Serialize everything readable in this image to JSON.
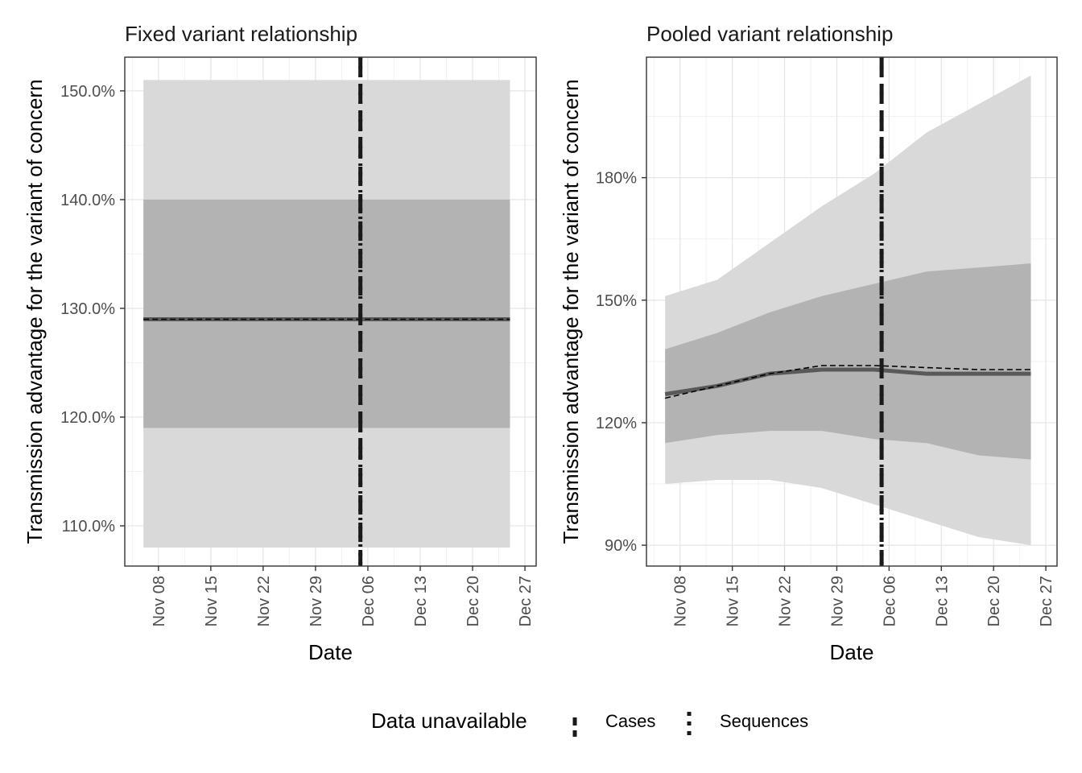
{
  "legend": {
    "title": "Data unavailable",
    "items": [
      {
        "label": "Cases",
        "dash": "long"
      },
      {
        "label": "Sequences",
        "dash": "short"
      }
    ]
  },
  "chart_data": [
    {
      "type": "line",
      "title": "Fixed variant relationship",
      "xlabel": "Date",
      "ylabel": "Transmission advantage for the variant of concern",
      "x_ticks": [
        "Nov 08",
        "Nov 15",
        "Nov 22",
        "Nov 29",
        "Dec 06",
        "Dec 13",
        "Dec 20",
        "Dec 27"
      ],
      "x_tick_days": [
        8,
        15,
        22,
        29,
        36,
        43,
        50,
        57
      ],
      "xlim_days": [
        3.5,
        58.5
      ],
      "y_ticks": [
        1.1,
        1.2,
        1.3,
        1.4,
        1.5
      ],
      "y_tick_labels": [
        "110.0%",
        "120.0%",
        "130.0%",
        "140.0%",
        "150.0%"
      ],
      "ylim": [
        1.063,
        1.531
      ],
      "x_days": [
        6,
        13,
        20,
        27,
        34,
        41,
        48,
        55
      ],
      "median": [
        1.29,
        1.29,
        1.29,
        1.29,
        1.29,
        1.29,
        1.29,
        1.29
      ],
      "ci50_lower": [
        1.19,
        1.19,
        1.19,
        1.19,
        1.19,
        1.19,
        1.19,
        1.19
      ],
      "ci50_upper": [
        1.4,
        1.4,
        1.4,
        1.4,
        1.4,
        1.4,
        1.4,
        1.4
      ],
      "ci90_lower": [
        1.08,
        1.08,
        1.08,
        1.08,
        1.08,
        1.08,
        1.08,
        1.08
      ],
      "ci90_upper": [
        1.51,
        1.51,
        1.51,
        1.51,
        1.51,
        1.51,
        1.51,
        1.51
      ],
      "reference": [
        1.29,
        1.29,
        1.29,
        1.29,
        1.29,
        1.29,
        1.29,
        1.29
      ],
      "cases_unavailable_day": 35,
      "sequences_unavailable_day": 35
    },
    {
      "type": "line",
      "title": "Pooled variant relationship",
      "xlabel": "Date",
      "ylabel": "Transmission advantage for the variant of concern",
      "x_ticks": [
        "Nov 08",
        "Nov 15",
        "Nov 22",
        "Nov 29",
        "Dec 06",
        "Dec 13",
        "Dec 20",
        "Dec 27"
      ],
      "x_tick_days": [
        8,
        15,
        22,
        29,
        36,
        43,
        50,
        57
      ],
      "xlim_days": [
        3.5,
        58.5
      ],
      "y_ticks": [
        0.9,
        1.2,
        1.5,
        1.8
      ],
      "y_tick_labels": [
        "90%",
        "120%",
        "150%",
        "180%"
      ],
      "ylim": [
        0.849,
        2.095
      ],
      "x_days": [
        6,
        13,
        20,
        27,
        34,
        41,
        48,
        55
      ],
      "median": [
        1.27,
        1.29,
        1.32,
        1.33,
        1.33,
        1.32,
        1.32,
        1.32
      ],
      "ci50_lower": [
        1.15,
        1.17,
        1.18,
        1.18,
        1.16,
        1.15,
        1.12,
        1.11
      ],
      "ci50_upper": [
        1.38,
        1.42,
        1.47,
        1.51,
        1.54,
        1.57,
        1.58,
        1.59
      ],
      "ci90_lower": [
        1.05,
        1.06,
        1.06,
        1.04,
        1.0,
        0.96,
        0.92,
        0.9
      ],
      "ci90_upper": [
        1.51,
        1.55,
        1.64,
        1.73,
        1.81,
        1.91,
        1.98,
        2.05
      ],
      "reference": [
        1.26,
        1.29,
        1.32,
        1.34,
        1.34,
        1.335,
        1.33,
        1.33
      ],
      "cases_unavailable_day": 35,
      "sequences_unavailable_day": 35
    }
  ]
}
